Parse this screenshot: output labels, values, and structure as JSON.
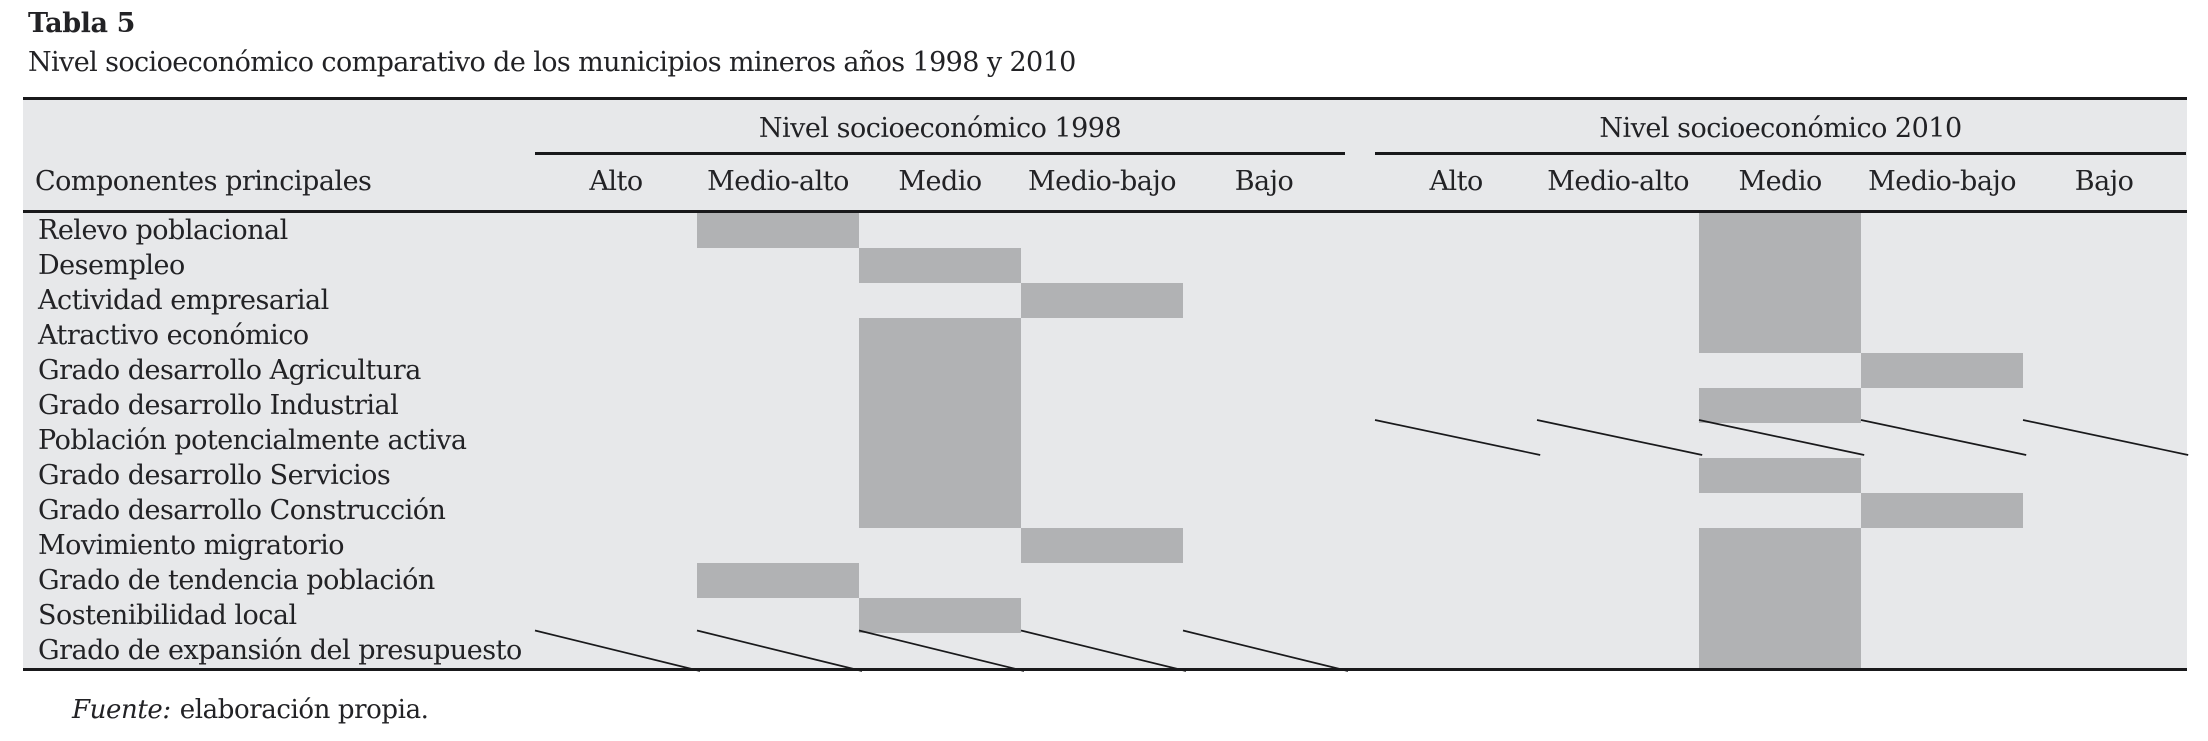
{
  "header": {
    "table_number": "Tabla 5",
    "caption": "Nivel socioeconómico comparativo de los municipios mineros años 1998 y 2010"
  },
  "table": {
    "corner_label": "Componentes principales",
    "levels": [
      "Alto",
      "Medio-alto",
      "Medio",
      "Medio-bajo",
      "Bajo"
    ],
    "groups": [
      {
        "label": "Nivel socioeconómico 1998"
      },
      {
        "label": "Nivel socioeconómico 2010"
      }
    ],
    "rows": [
      {
        "label": "Relevo poblacional",
        "nivel_1998": "Medio-alto",
        "nivel_2010": "Medio"
      },
      {
        "label": "Desempleo",
        "nivel_1998": "Medio",
        "nivel_2010": "Medio"
      },
      {
        "label": "Actividad empresarial",
        "nivel_1998": "Medio-bajo",
        "nivel_2010": "Medio"
      },
      {
        "label": "Atractivo económico",
        "nivel_1998": "Medio",
        "nivel_2010": "Medio"
      },
      {
        "label": "Grado desarrollo Agricultura",
        "nivel_1998": "Medio",
        "nivel_2010": "Medio-bajo"
      },
      {
        "label": "Grado desarrollo Industrial",
        "nivel_1998": "Medio",
        "nivel_2010": "Medio"
      },
      {
        "label": "Población potencialmente activa",
        "nivel_1998": "Medio",
        "nivel_2010": "no-data-slash"
      },
      {
        "label": "Grado desarrollo Servicios",
        "nivel_1998": "Medio",
        "nivel_2010": "Medio"
      },
      {
        "label": "Grado desarrollo Construcción",
        "nivel_1998": "Medio",
        "nivel_2010": "Medio-bajo"
      },
      {
        "label": "Movimiento migratorio",
        "nivel_1998": "Medio-bajo",
        "nivel_2010": "Medio"
      },
      {
        "label": "Grado de tendencia población",
        "nivel_1998": "Medio-alto",
        "nivel_2010": "Medio"
      },
      {
        "label": "Sostenibilidad local",
        "nivel_1998": "Medio",
        "nivel_2010": "Medio"
      },
      {
        "label": "Grado de expansión del presupuesto",
        "nivel_1998": "no-data-slash",
        "nivel_2010": "Medio"
      }
    ]
  },
  "footer": {
    "source_label": "Fuente:",
    "source_text": "elaboración propia."
  },
  "colors": {
    "band_background": "#e7e8ea",
    "shaded_cell": "#b1b2b4",
    "rule_line": "#19191b",
    "text": "#222225"
  }
}
